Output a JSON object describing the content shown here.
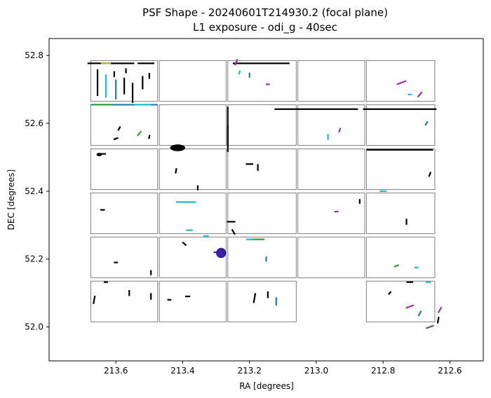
{
  "chart_data": {
    "type": "scatter",
    "title": "PSF Shape - 20240601T214930.2 (focal plane)",
    "subtitle": "L1 exposure - odi_g - 40sec",
    "xlabel": "RA [degrees]",
    "ylabel": "DEC [degrees]",
    "xlim": [
      213.8,
      212.5
    ],
    "ylim": [
      51.9,
      52.85
    ],
    "x_ticks": [
      213.6,
      213.4,
      213.2,
      213.0,
      212.8,
      212.6
    ],
    "x_tick_labels": [
      "213.6",
      "213.4",
      "213.2",
      "213.0",
      "212.8",
      "212.6"
    ],
    "y_ticks": [
      52.0,
      52.2,
      52.4,
      52.6,
      52.8
    ],
    "y_tick_labels": [
      "52.0",
      "52.2",
      "52.4",
      "52.6",
      "52.8"
    ],
    "grid": false,
    "legend": "none",
    "ccd_grid": {
      "columns_ra": [
        [
          213.675,
          213.475
        ],
        [
          213.47,
          213.27
        ],
        [
          213.265,
          213.06
        ],
        [
          213.055,
          212.855
        ],
        [
          212.85,
          212.645
        ]
      ],
      "rows_dec": [
        [
          52.785,
          52.665
        ],
        [
          52.655,
          52.535
        ],
        [
          52.525,
          52.405
        ],
        [
          52.395,
          52.275
        ],
        [
          52.265,
          52.145
        ],
        [
          52.135,
          52.015
        ]
      ],
      "missing": [
        [
          5,
          3
        ]
      ],
      "edge_color": "#808080"
    },
    "vector_colors": [
      "#000000",
      "#2a2a2a",
      "#17becf",
      "#1f77b4",
      "#3b1f9e",
      "#9b2fae",
      "#2ca02c",
      "#bcbd22"
    ],
    "psf_vectors": [
      {
        "ra": 213.66,
        "dec": 52.777,
        "len": 0.05,
        "ang": 0,
        "color": "#000000"
      },
      {
        "ra": 213.59,
        "dec": 52.777,
        "len": 0.09,
        "ang": 0,
        "color": "#000000"
      },
      {
        "ra": 213.51,
        "dec": 52.777,
        "len": 0.05,
        "ang": 0,
        "color": "#000000"
      },
      {
        "ra": 213.63,
        "dec": 52.777,
        "len": 0.03,
        "ang": 0,
        "color": "#bcbd22"
      },
      {
        "ra": 213.655,
        "dec": 52.72,
        "len": 0.08,
        "ang": 90,
        "color": "#000000"
      },
      {
        "ra": 213.63,
        "dec": 52.71,
        "len": 0.07,
        "ang": 90,
        "color": "#17becf"
      },
      {
        "ra": 213.6,
        "dec": 52.7,
        "len": 0.06,
        "ang": 90,
        "color": "#1f77b4"
      },
      {
        "ra": 213.575,
        "dec": 52.71,
        "len": 0.05,
        "ang": 90,
        "color": "#000000"
      },
      {
        "ra": 213.55,
        "dec": 52.69,
        "len": 0.06,
        "ang": 90,
        "color": "#000000"
      },
      {
        "ra": 213.52,
        "dec": 52.72,
        "len": 0.04,
        "ang": 90,
        "color": "#000000"
      },
      {
        "ra": 213.605,
        "dec": 52.745,
        "len": 0.018,
        "ang": 90,
        "color": "#000000"
      },
      {
        "ra": 213.57,
        "dec": 52.755,
        "len": 0.015,
        "ang": 90,
        "color": "#000000"
      },
      {
        "ra": 213.5,
        "dec": 52.74,
        "len": 0.018,
        "ang": 90,
        "color": "#000000"
      },
      {
        "ra": 213.575,
        "dec": 52.655,
        "len": 0.2,
        "ang": 0,
        "color": "#1f77b4"
      },
      {
        "ra": 213.64,
        "dec": 52.655,
        "len": 0.06,
        "ang": 0,
        "color": "#2ca02c"
      },
      {
        "ra": 213.52,
        "dec": 52.655,
        "len": 0.05,
        "ang": 0,
        "color": "#17becf"
      },
      {
        "ra": 213.59,
        "dec": 52.585,
        "len": 0.014,
        "ang": 60,
        "color": "#000000"
      },
      {
        "ra": 213.53,
        "dec": 52.57,
        "len": 0.018,
        "ang": 50,
        "color": "#2ca02c"
      },
      {
        "ra": 213.6,
        "dec": 52.555,
        "len": 0.015,
        "ang": 20,
        "color": "#000000"
      },
      {
        "ra": 213.5,
        "dec": 52.56,
        "len": 0.012,
        "ang": 80,
        "color": "#000000"
      },
      {
        "ra": 213.415,
        "dec": 52.53,
        "len": 0.04,
        "ang": 0,
        "color": "#000000"
      },
      {
        "ra": 213.265,
        "dec": 52.59,
        "len": 0.12,
        "ang": 90,
        "color": "#000000"
      },
      {
        "ra": 213.265,
        "dec": 52.555,
        "len": 0.08,
        "ang": 90,
        "color": "#000000"
      },
      {
        "ra": 213.165,
        "dec": 52.777,
        "len": 0.17,
        "ang": 0,
        "color": "#000000"
      },
      {
        "ra": 213.24,
        "dec": 52.78,
        "len": 0.02,
        "ang": 70,
        "color": "#9b2fae"
      },
      {
        "ra": 213.23,
        "dec": 52.75,
        "len": 0.012,
        "ang": 80,
        "color": "#17becf"
      },
      {
        "ra": 213.2,
        "dec": 52.742,
        "len": 0.015,
        "ang": 90,
        "color": "#1f77b4"
      },
      {
        "ra": 213.145,
        "dec": 52.715,
        "len": 0.012,
        "ang": 0,
        "color": "#9b2fae"
      },
      {
        "ra": 213.0,
        "dec": 52.642,
        "len": 0.25,
        "ang": 0,
        "color": "#000000"
      },
      {
        "ra": 212.75,
        "dec": 52.642,
        "len": 0.22,
        "ang": 0,
        "color": "#000000"
      },
      {
        "ra": 212.965,
        "dec": 52.56,
        "len": 0.018,
        "ang": 90,
        "color": "#17becf"
      },
      {
        "ra": 212.93,
        "dec": 52.58,
        "len": 0.014,
        "ang": 70,
        "color": "#9b2fae"
      },
      {
        "ra": 212.745,
        "dec": 52.72,
        "len": 0.03,
        "ang": 20,
        "color": "#9b2fae"
      },
      {
        "ra": 212.69,
        "dec": 52.685,
        "len": 0.02,
        "ang": 50,
        "color": "#9b2fae"
      },
      {
        "ra": 212.72,
        "dec": 52.685,
        "len": 0.012,
        "ang": 0,
        "color": "#17becf"
      },
      {
        "ra": 212.67,
        "dec": 52.6,
        "len": 0.014,
        "ang": 60,
        "color": "#1f77b4"
      },
      {
        "ra": 212.75,
        "dec": 52.522,
        "len": 0.2,
        "ang": 0,
        "color": "#000000"
      },
      {
        "ra": 213.64,
        "dec": 52.51,
        "len": 0.02,
        "ang": 0,
        "color": "#000000"
      },
      {
        "ra": 213.42,
        "dec": 52.46,
        "len": 0.016,
        "ang": 80,
        "color": "#000000"
      },
      {
        "ra": 213.355,
        "dec": 52.41,
        "len": 0.015,
        "ang": 90,
        "color": "#000000"
      },
      {
        "ra": 213.2,
        "dec": 52.48,
        "len": 0.022,
        "ang": 0,
        "color": "#000000"
      },
      {
        "ra": 213.175,
        "dec": 52.47,
        "len": 0.02,
        "ang": 90,
        "color": "#000000"
      },
      {
        "ra": 212.8,
        "dec": 52.4,
        "len": 0.02,
        "ang": 0,
        "color": "#17becf"
      },
      {
        "ra": 212.66,
        "dec": 52.45,
        "len": 0.015,
        "ang": 70,
        "color": "#000000"
      },
      {
        "ra": 213.39,
        "dec": 52.368,
        "len": 0.06,
        "ang": 0,
        "color": "#17becf"
      },
      {
        "ra": 213.255,
        "dec": 52.31,
        "len": 0.025,
        "ang": 0,
        "color": "#000000"
      },
      {
        "ra": 213.248,
        "dec": 52.28,
        "len": 0.018,
        "ang": -60,
        "color": "#000000"
      },
      {
        "ra": 213.38,
        "dec": 52.285,
        "len": 0.02,
        "ang": 0,
        "color": "#17becf"
      },
      {
        "ra": 213.33,
        "dec": 52.268,
        "len": 0.016,
        "ang": 0,
        "color": "#17becf"
      },
      {
        "ra": 213.64,
        "dec": 52.345,
        "len": 0.014,
        "ang": 0,
        "color": "#000000"
      },
      {
        "ra": 212.94,
        "dec": 52.34,
        "len": 0.012,
        "ang": 0,
        "color": "#9b2fae"
      },
      {
        "ra": 212.87,
        "dec": 52.37,
        "len": 0.014,
        "ang": 90,
        "color": "#000000"
      },
      {
        "ra": 212.73,
        "dec": 52.31,
        "len": 0.018,
        "ang": 90,
        "color": "#000000"
      },
      {
        "ra": 213.295,
        "dec": 52.22,
        "len": 0.025,
        "ang": 0,
        "color": "#3b1f9e"
      },
      {
        "ra": 213.395,
        "dec": 52.245,
        "len": 0.015,
        "ang": -40,
        "color": "#000000"
      },
      {
        "ra": 213.175,
        "dec": 52.258,
        "len": 0.04,
        "ang": 0,
        "color": "#2ca02c"
      },
      {
        "ra": 213.2,
        "dec": 52.258,
        "len": 0.02,
        "ang": 0,
        "color": "#17becf"
      },
      {
        "ra": 213.15,
        "dec": 52.2,
        "len": 0.015,
        "ang": 90,
        "color": "#1f77b4"
      },
      {
        "ra": 212.76,
        "dec": 52.18,
        "len": 0.015,
        "ang": 20,
        "color": "#2ca02c"
      },
      {
        "ra": 212.7,
        "dec": 52.175,
        "len": 0.012,
        "ang": 0,
        "color": "#17becf"
      },
      {
        "ra": 212.72,
        "dec": 52.132,
        "len": 0.02,
        "ang": 0,
        "color": "#000000"
      },
      {
        "ra": 212.665,
        "dec": 52.132,
        "len": 0.015,
        "ang": 0,
        "color": "#17becf"
      },
      {
        "ra": 213.63,
        "dec": 52.132,
        "len": 0.012,
        "ang": 0,
        "color": "#000000"
      },
      {
        "ra": 213.495,
        "dec": 52.16,
        "len": 0.015,
        "ang": 90,
        "color": "#000000"
      },
      {
        "ra": 213.6,
        "dec": 52.19,
        "len": 0.012,
        "ang": 0,
        "color": "#000000"
      },
      {
        "ra": 213.665,
        "dec": 52.08,
        "len": 0.025,
        "ang": 80,
        "color": "#000000"
      },
      {
        "ra": 213.56,
        "dec": 52.1,
        "len": 0.018,
        "ang": 90,
        "color": "#000000"
      },
      {
        "ra": 213.495,
        "dec": 52.09,
        "len": 0.02,
        "ang": 90,
        "color": "#000000"
      },
      {
        "ra": 213.44,
        "dec": 52.08,
        "len": 0.012,
        "ang": 0,
        "color": "#000000"
      },
      {
        "ra": 213.385,
        "dec": 52.09,
        "len": 0.015,
        "ang": 0,
        "color": "#000000"
      },
      {
        "ra": 213.185,
        "dec": 52.085,
        "len": 0.03,
        "ang": 80,
        "color": "#000000"
      },
      {
        "ra": 213.145,
        "dec": 52.095,
        "len": 0.02,
        "ang": 90,
        "color": "#000000"
      },
      {
        "ra": 213.12,
        "dec": 52.075,
        "len": 0.025,
        "ang": 90,
        "color": "#1f77b4"
      },
      {
        "ra": 212.72,
        "dec": 52.06,
        "len": 0.025,
        "ang": 20,
        "color": "#9b2fae"
      },
      {
        "ra": 212.69,
        "dec": 52.04,
        "len": 0.018,
        "ang": 60,
        "color": "#1f77b4"
      },
      {
        "ra": 212.63,
        "dec": 52.05,
        "len": 0.02,
        "ang": 60,
        "color": "#9b2fae"
      },
      {
        "ra": 212.66,
        "dec": 52.0,
        "len": 0.025,
        "ang": 20,
        "color": "#9b2fae"
      },
      {
        "ra": 212.635,
        "dec": 52.02,
        "len": 0.02,
        "ang": 80,
        "color": "#000000"
      },
      {
        "ra": 212.78,
        "dec": 52.1,
        "len": 0.012,
        "ang": 50,
        "color": "#000000"
      }
    ],
    "star_clusters": [
      {
        "ra": 213.415,
        "dec": 52.528,
        "w": 0.045,
        "h": 0.02,
        "color": "#000000"
      },
      {
        "ra": 213.285,
        "dec": 52.218,
        "w": 0.03,
        "h": 0.03,
        "color": "#3b1f9e"
      },
      {
        "ra": 213.65,
        "dec": 52.508,
        "w": 0.016,
        "h": 0.01,
        "color": "#000000"
      }
    ]
  }
}
